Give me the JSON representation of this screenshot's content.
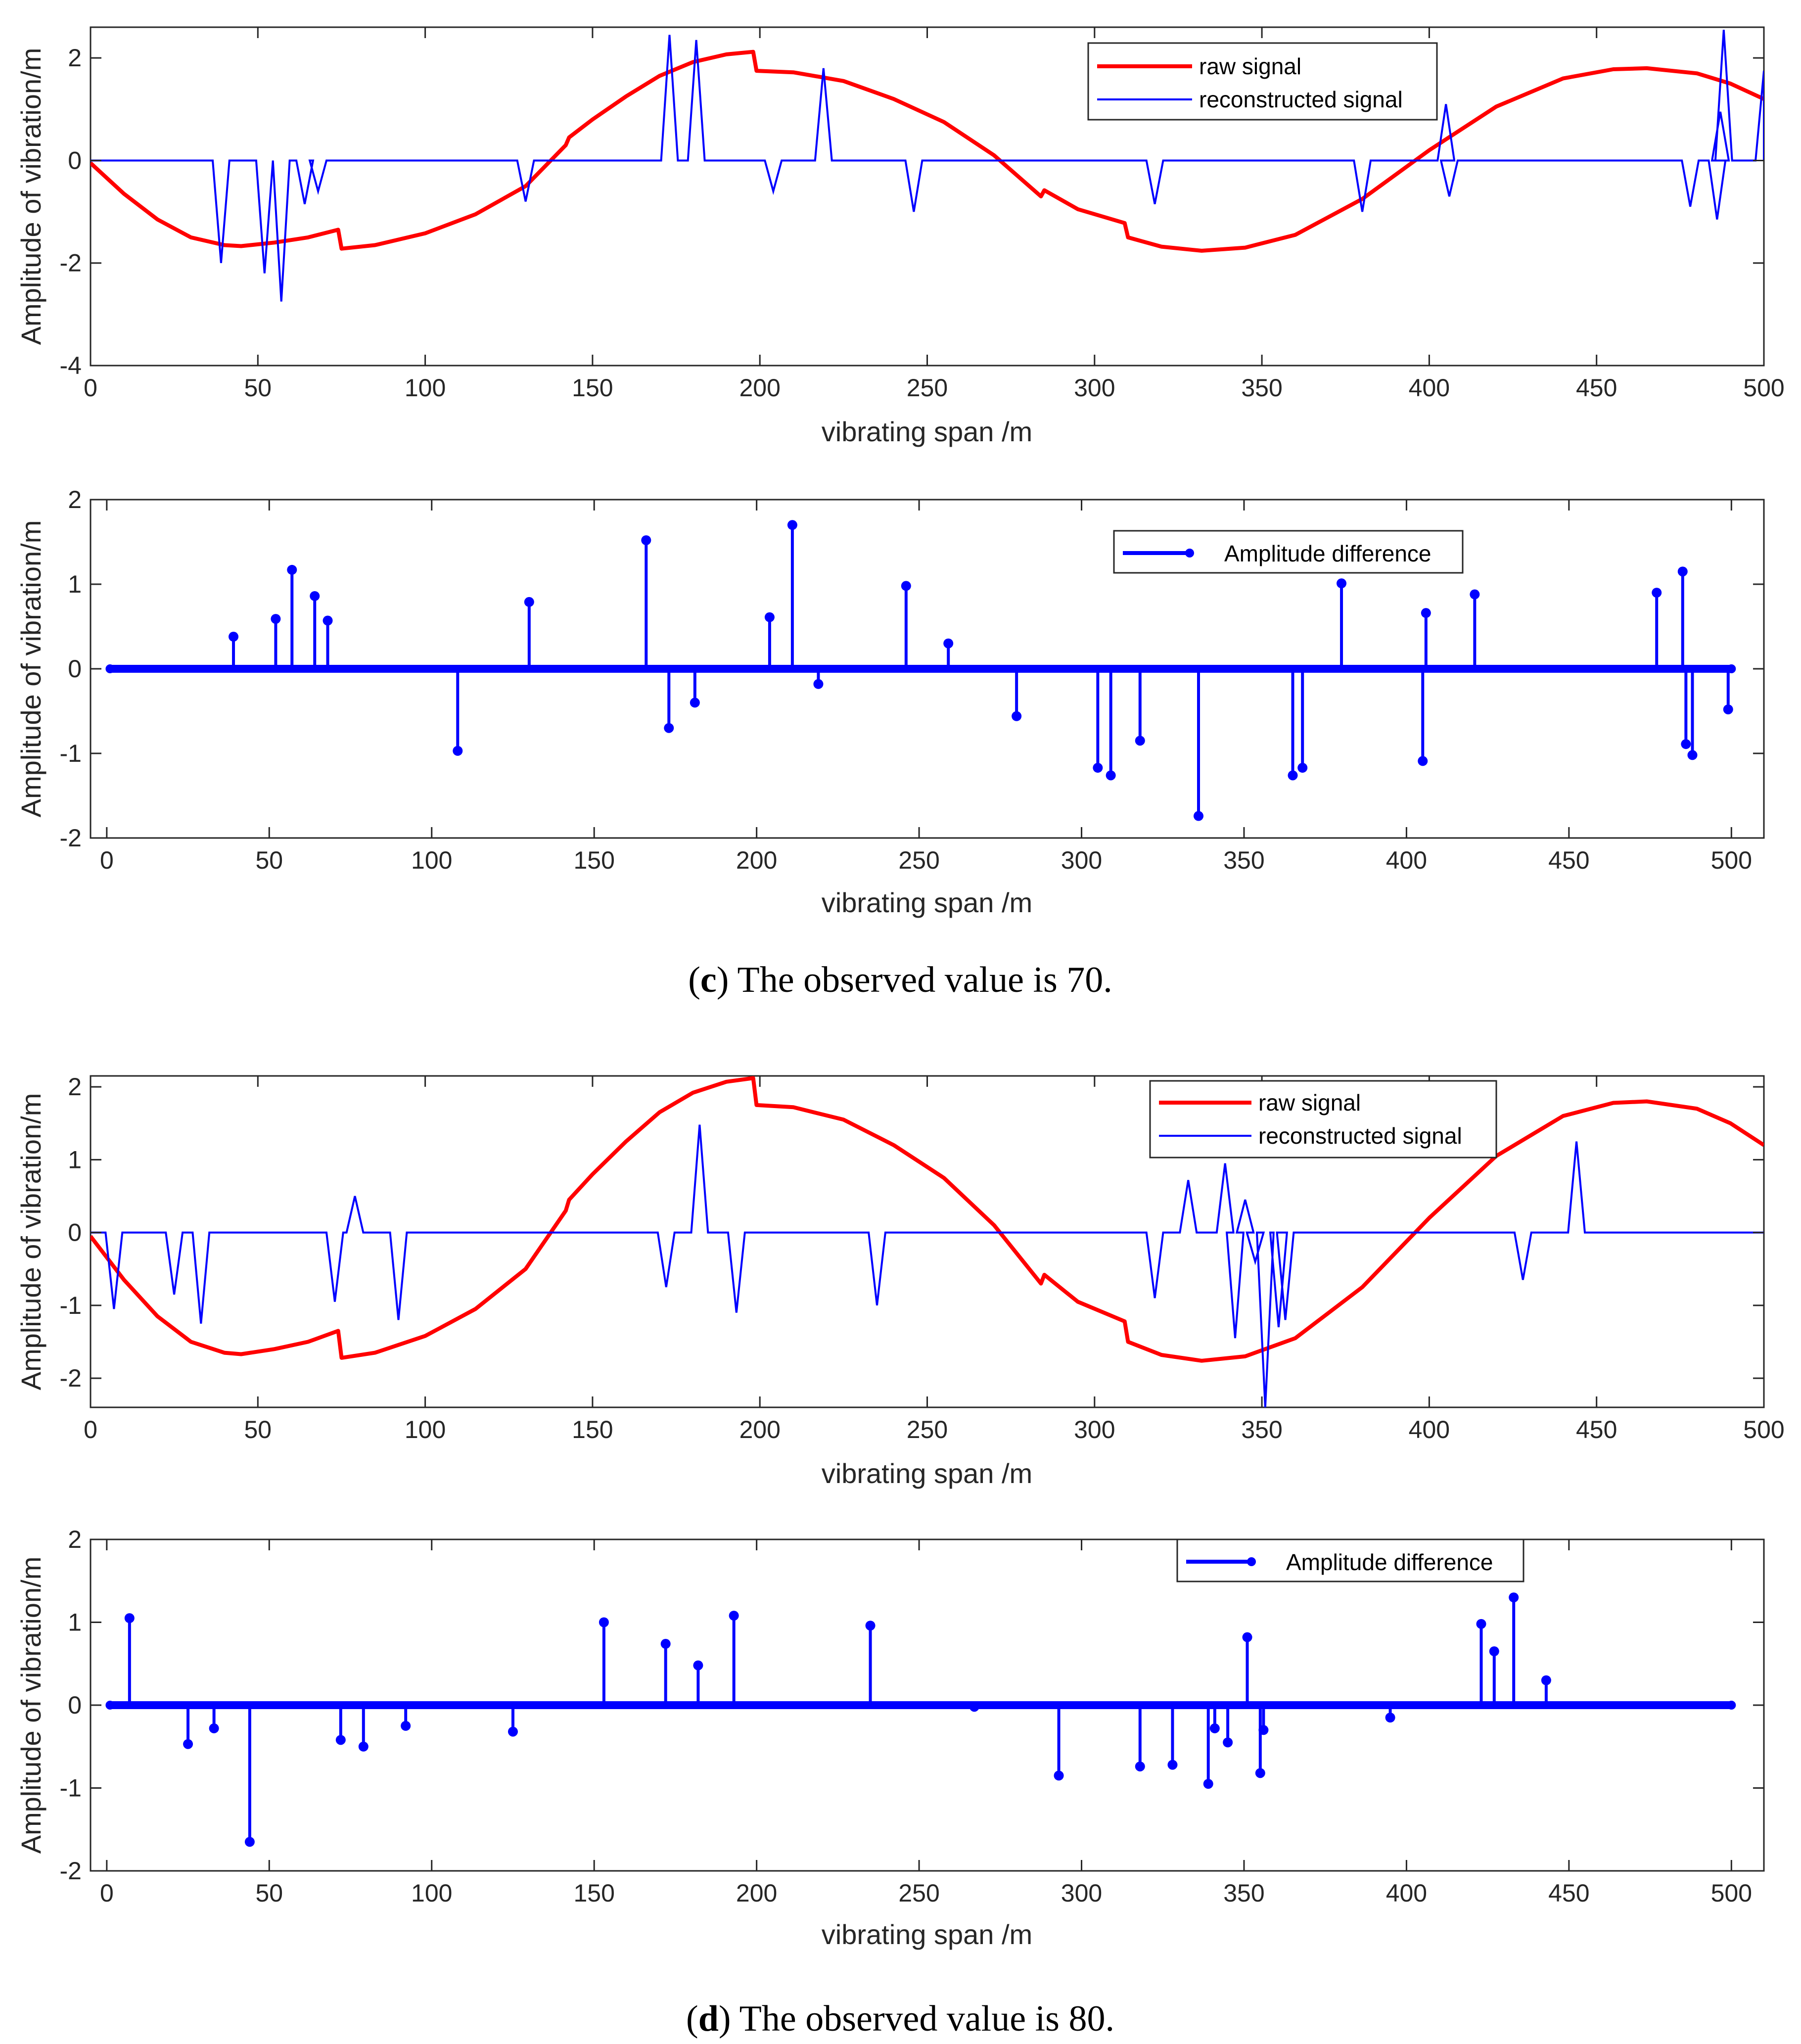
{
  "colors": {
    "raw": "#ff0000",
    "reconstructed": "#0000ff",
    "axis": "#262626",
    "grid": "none"
  },
  "chart_data": [
    {
      "type": "line",
      "xlabel": "vibrating span /m",
      "ylabel": "Amplitude of vibration/m",
      "xlim": [
        0,
        500
      ],
      "ylim": [
        -4,
        2.6
      ],
      "xticks": [
        0,
        50,
        100,
        150,
        200,
        250,
        300,
        350,
        400,
        450,
        500
      ],
      "yticks": [
        -4,
        -2,
        0,
        2
      ],
      "legend_position": "top-right",
      "series": [
        {
          "name": "raw signal",
          "color": "#ff0000",
          "points": [
            [
              0,
              -0.05
            ],
            [
              10,
              -0.65
            ],
            [
              20,
              -1.15
            ],
            [
              30,
              -1.5
            ],
            [
              40,
              -1.65
            ],
            [
              45,
              -1.67
            ],
            [
              55,
              -1.6
            ],
            [
              65,
              -1.5
            ],
            [
              74,
              -1.35
            ],
            [
              75,
              -1.72
            ],
            [
              85,
              -1.65
            ],
            [
              100,
              -1.42
            ],
            [
              115,
              -1.05
            ],
            [
              130,
              -0.5
            ],
            [
              142,
              0.3
            ],
            [
              143,
              0.45
            ],
            [
              150,
              0.8
            ],
            [
              160,
              1.25
            ],
            [
              170,
              1.65
            ],
            [
              180,
              1.92
            ],
            [
              190,
              2.07
            ],
            [
              198,
              2.12
            ],
            [
              199,
              1.75
            ],
            [
              210,
              1.72
            ],
            [
              225,
              1.55
            ],
            [
              240,
              1.2
            ],
            [
              255,
              0.75
            ],
            [
              270,
              0.1
            ],
            [
              284,
              -0.7
            ],
            [
              285,
              -0.58
            ],
            [
              295,
              -0.95
            ],
            [
              309,
              -1.22
            ],
            [
              310,
              -1.5
            ],
            [
              320,
              -1.68
            ],
            [
              332,
              -1.76
            ],
            [
              345,
              -1.7
            ],
            [
              360,
              -1.45
            ],
            [
              380,
              -0.75
            ],
            [
              400,
              0.2
            ],
            [
              420,
              1.05
            ],
            [
              440,
              1.6
            ],
            [
              455,
              1.78
            ],
            [
              465,
              1.8
            ],
            [
              480,
              1.7
            ],
            [
              490,
              1.5
            ],
            [
              500,
              1.2
            ]
          ]
        },
        {
          "name": "reconstructed signal",
          "color": "#0000ff",
          "spikes": [
            [
              39,
              -2.0
            ],
            [
              52,
              -2.2
            ],
            [
              57,
              -2.75
            ],
            [
              64,
              -0.85
            ],
            [
              68,
              -0.6
            ],
            [
              130,
              -0.8
            ],
            [
              173,
              2.45
            ],
            [
              181,
              2.35
            ],
            [
              204,
              -0.6
            ],
            [
              219,
              1.8
            ],
            [
              246,
              -1.0
            ],
            [
              318,
              -0.85
            ],
            [
              380,
              -1.0
            ],
            [
              405,
              1.1
            ],
            [
              406,
              -0.7
            ],
            [
              478,
              -0.9
            ],
            [
              486,
              -1.15
            ],
            [
              487,
              0.95
            ],
            [
              488,
              2.55
            ],
            [
              500,
              1.75
            ]
          ]
        }
      ]
    },
    {
      "type": "stem",
      "xlabel": "vibrating span /m",
      "ylabel": "Amplitude of vibration/m",
      "xlim": [
        -5,
        510
      ],
      "ylim": [
        -2,
        2
      ],
      "xticks": [
        0,
        50,
        100,
        150,
        200,
        250,
        300,
        350,
        400,
        450,
        500
      ],
      "yticks": [
        -2,
        -1,
        0,
        1,
        2
      ],
      "legend_position": "top-right",
      "series": [
        {
          "name": "Amplitude difference",
          "color": "#0000ff",
          "x_range": [
            1,
            500
          ],
          "stems": [
            [
              39,
              0.38
            ],
            [
              52,
              0.59
            ],
            [
              57,
              1.17
            ],
            [
              64,
              0.86
            ],
            [
              68,
              0.57
            ],
            [
              108,
              -0.97
            ],
            [
              130,
              0.79
            ],
            [
              166,
              1.52
            ],
            [
              173,
              -0.7
            ],
            [
              181,
              -0.4
            ],
            [
              204,
              0.61
            ],
            [
              211,
              1.7
            ],
            [
              219,
              -0.18
            ],
            [
              246,
              0.98
            ],
            [
              259,
              0.3
            ],
            [
              280,
              -0.56
            ],
            [
              305,
              -1.17
            ],
            [
              309,
              -1.26
            ],
            [
              318,
              -0.85
            ],
            [
              336,
              -1.74
            ],
            [
              365,
              -1.26
            ],
            [
              368,
              -1.17
            ],
            [
              380,
              1.01
            ],
            [
              405,
              -1.09
            ],
            [
              406,
              0.66
            ],
            [
              421,
              0.88
            ],
            [
              477,
              0.9
            ],
            [
              485,
              1.15
            ],
            [
              486,
              -0.89
            ],
            [
              488,
              -1.02
            ],
            [
              499,
              -0.48
            ]
          ]
        }
      ]
    },
    {
      "type": "line",
      "xlabel": "vibrating span /m",
      "ylabel": "Amplitude of vibration/m",
      "xlim": [
        0,
        500
      ],
      "ylim": [
        -2.4,
        2.15
      ],
      "xticks": [
        0,
        50,
        100,
        150,
        200,
        250,
        300,
        350,
        400,
        450,
        500
      ],
      "yticks": [
        -2,
        -1,
        0,
        1,
        2
      ],
      "legend_position": "top-right",
      "series": [
        {
          "name": "raw signal",
          "color": "#ff0000",
          "points": [
            [
              0,
              -0.05
            ],
            [
              10,
              -0.65
            ],
            [
              20,
              -1.15
            ],
            [
              30,
              -1.5
            ],
            [
              40,
              -1.65
            ],
            [
              45,
              -1.67
            ],
            [
              55,
              -1.6
            ],
            [
              65,
              -1.5
            ],
            [
              74,
              -1.35
            ],
            [
              75,
              -1.72
            ],
            [
              85,
              -1.65
            ],
            [
              100,
              -1.42
            ],
            [
              115,
              -1.05
            ],
            [
              130,
              -0.5
            ],
            [
              142,
              0.3
            ],
            [
              143,
              0.45
            ],
            [
              150,
              0.8
            ],
            [
              160,
              1.25
            ],
            [
              170,
              1.65
            ],
            [
              180,
              1.92
            ],
            [
              190,
              2.07
            ],
            [
              198,
              2.12
            ],
            [
              199,
              1.75
            ],
            [
              210,
              1.72
            ],
            [
              225,
              1.55
            ],
            [
              240,
              1.2
            ],
            [
              255,
              0.75
            ],
            [
              270,
              0.1
            ],
            [
              284,
              -0.7
            ],
            [
              285,
              -0.58
            ],
            [
              295,
              -0.95
            ],
            [
              309,
              -1.22
            ],
            [
              310,
              -1.5
            ],
            [
              320,
              -1.68
            ],
            [
              332,
              -1.76
            ],
            [
              345,
              -1.7
            ],
            [
              360,
              -1.45
            ],
            [
              380,
              -0.75
            ],
            [
              400,
              0.2
            ],
            [
              420,
              1.05
            ],
            [
              440,
              1.6
            ],
            [
              455,
              1.78
            ],
            [
              465,
              1.8
            ],
            [
              480,
              1.7
            ],
            [
              490,
              1.5
            ],
            [
              500,
              1.2
            ]
          ]
        },
        {
          "name": "reconstructed signal",
          "color": "#0000ff",
          "spikes": [
            [
              7,
              -1.05
            ],
            [
              25,
              -0.85
            ],
            [
              33,
              -1.25
            ],
            [
              73,
              -0.95
            ],
            [
              79,
              0.5
            ],
            [
              92,
              -1.2
            ],
            [
              172,
              -0.75
            ],
            [
              182,
              1.48
            ],
            [
              193,
              -1.1
            ],
            [
              235,
              -1.0
            ],
            [
              318,
              -0.9
            ],
            [
              328,
              0.72
            ],
            [
              339,
              0.95
            ],
            [
              342,
              -1.45
            ],
            [
              345,
              0.45
            ],
            [
              348,
              -0.4
            ],
            [
              351,
              -2.4
            ],
            [
              355,
              -1.3
            ],
            [
              357,
              -1.2
            ],
            [
              428,
              -0.65
            ],
            [
              444,
              1.25
            ]
          ]
        }
      ]
    },
    {
      "type": "stem",
      "xlabel": "vibrating span /m",
      "ylabel": "Amplitude of vibration/m",
      "xlim": [
        -5,
        510
      ],
      "ylim": [
        -2,
        2
      ],
      "xticks": [
        0,
        50,
        100,
        150,
        200,
        250,
        300,
        350,
        400,
        450,
        500
      ],
      "yticks": [
        -2,
        -1,
        0,
        1,
        2
      ],
      "legend_position": "top-right",
      "series": [
        {
          "name": "Amplitude difference",
          "color": "#0000ff",
          "x_range": [
            1,
            500
          ],
          "stems": [
            [
              7,
              1.05
            ],
            [
              25,
              -0.47
            ],
            [
              33,
              -0.28
            ],
            [
              44,
              -1.65
            ],
            [
              72,
              -0.42
            ],
            [
              79,
              -0.5
            ],
            [
              92,
              -0.25
            ],
            [
              125,
              -0.32
            ],
            [
              153,
              1.0
            ],
            [
              172,
              0.74
            ],
            [
              182,
              0.48
            ],
            [
              193,
              1.08
            ],
            [
              235,
              0.96
            ],
            [
              267,
              -0.02
            ],
            [
              293,
              -0.85
            ],
            [
              318,
              -0.74
            ],
            [
              328,
              -0.72
            ],
            [
              339,
              -0.95
            ],
            [
              341,
              -0.28
            ],
            [
              345,
              -0.45
            ],
            [
              351,
              0.82
            ],
            [
              355,
              -0.82
            ],
            [
              356,
              -0.3
            ],
            [
              395,
              -0.15
            ],
            [
              423,
              0.98
            ],
            [
              427,
              0.65
            ],
            [
              433,
              1.3
            ],
            [
              443,
              0.3
            ]
          ]
        }
      ]
    }
  ],
  "captions": [
    {
      "letter": "c",
      "text": " The observed value is 70."
    },
    {
      "letter": "d",
      "text": " The observed value is 80."
    }
  ]
}
